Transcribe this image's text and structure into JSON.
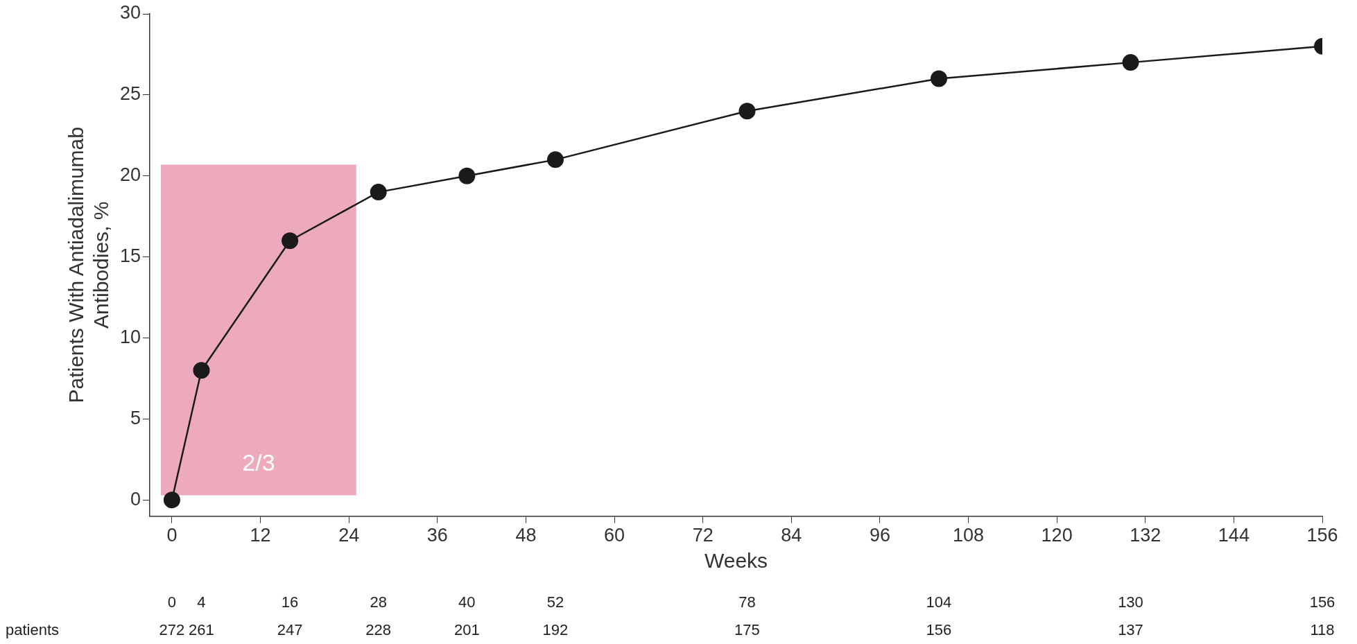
{
  "chart_data": {
    "type": "line",
    "xlabel": "Weeks",
    "ylabel": "Patients With Antiadalimumab\nAntibodies, %",
    "x": [
      0,
      4,
      16,
      28,
      40,
      52,
      78,
      104,
      130,
      156
    ],
    "values": [
      0,
      8,
      16,
      19,
      20,
      21,
      24,
      26,
      27,
      28
    ],
    "color": "#1a1a1a",
    "marker": "circle",
    "line_style": "solid",
    "grid": false,
    "legend": false,
    "xlim": [
      -3,
      156
    ],
    "xticks": [
      0,
      12,
      24,
      36,
      48,
      60,
      72,
      84,
      96,
      108,
      120,
      132,
      144,
      156
    ],
    "ylim": [
      -1,
      30
    ],
    "yticks": [
      0,
      5,
      10,
      15,
      20,
      25,
      30
    ],
    "bands": [
      {
        "axis": "x",
        "from": -1.5,
        "to": 25,
        "label": "2/3",
        "color": "#eeaabd"
      }
    ],
    "annotations": [
      "patients",
      "0",
      "4",
      "16",
      "28",
      "40",
      "52",
      "78",
      "104",
      "130",
      "156",
      "272",
      "261",
      "247",
      "228",
      "201",
      "192",
      "175",
      "156",
      "137",
      "118"
    ]
  }
}
